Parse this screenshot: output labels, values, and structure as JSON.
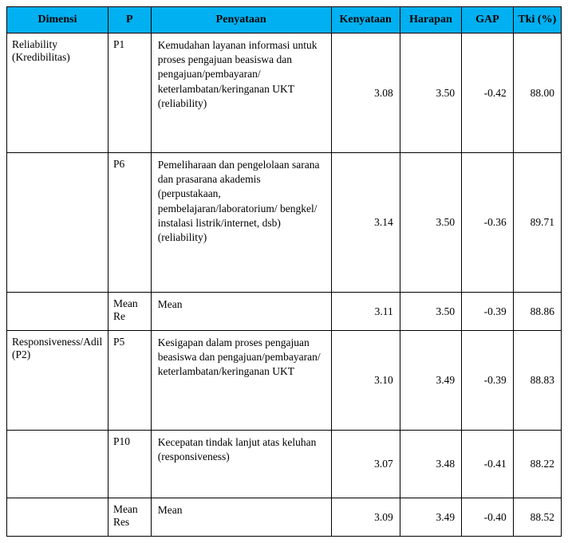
{
  "headers": {
    "dimensi": "Dimensi",
    "p": "P",
    "penyataan": "Penyataan",
    "kenyataan": "Kenyataan",
    "harapan": "Harapan",
    "gap": "GAP",
    "tki": "Tki (%)"
  },
  "rows": [
    {
      "dimensi": "Reliability (Kredibilitas)",
      "p": "P1",
      "statement": "Kemudahan layanan informasi untuk proses pengajuan beasiswa dan pengajuan/pembayaran/ keterlambatan/keringanan UKT (reliability)",
      "kenyataan": "3.08",
      "harapan": "3.50",
      "gap": "-0.42",
      "tki": "88.00",
      "rowClass": "tall-1"
    },
    {
      "dimensi": "",
      "p": "P6",
      "statement": "Pemeliharaan dan pengelolaan sarana dan prasarana akademis (perpustakaan, pembelajaran/laboratorium/ bengkel/ instalasi listrik/internet, dsb) (reliability)",
      "kenyataan": "3.14",
      "harapan": "3.50",
      "gap": "-0.36",
      "tki": "89.71",
      "rowClass": "tall-2"
    },
    {
      "dimensi": "",
      "p": "Mean Re",
      "statement": "Mean",
      "kenyataan": "3.11",
      "harapan": "3.50",
      "gap": "-0.39",
      "tki": "88.86",
      "rowClass": "tall-3"
    },
    {
      "dimensi": "Responsiveness/Adil (P2)",
      "p": "P5",
      "statement": "Kesigapan dalam proses pengajuan beasiswa dan pengajuan/pembayaran/ keterlambatan/keringanan UKT",
      "kenyataan": "3.10",
      "harapan": "3.49",
      "gap": "-0.39",
      "tki": "88.83",
      "rowClass": "tall-4"
    },
    {
      "dimensi": "",
      "p": "P10",
      "statement": "Kecepatan tindak lanjut atas keluhan (responsiveness)",
      "kenyataan": "3.07",
      "harapan": "3.48",
      "gap": "-0.41",
      "tki": "88.22",
      "rowClass": "tall-5"
    },
    {
      "dimensi": "",
      "p": "Mean Res",
      "statement": "Mean",
      "kenyataan": "3.09",
      "harapan": "3.49",
      "gap": "-0.40",
      "tki": "88.52",
      "rowClass": "tall-3"
    }
  ]
}
